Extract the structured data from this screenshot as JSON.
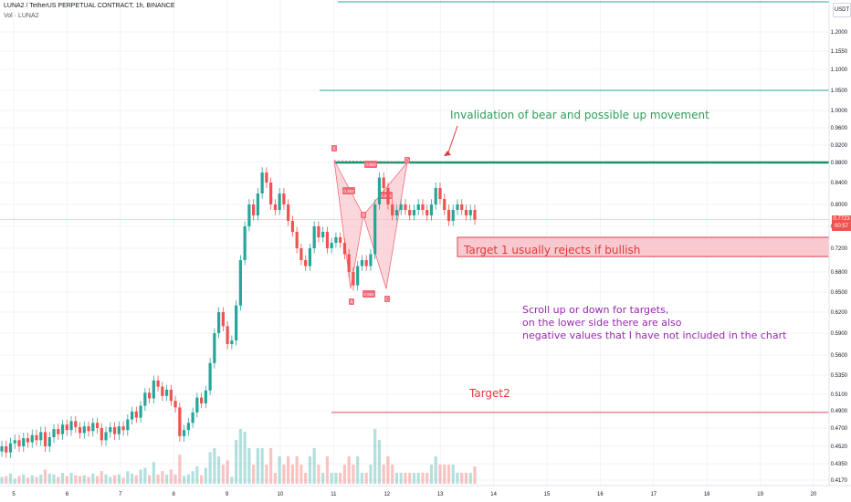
{
  "header": {
    "symbol_line": "LUNA2 / TetherUS PERPETUAL CONTRACT, 1h, BINANCE",
    "volume_label": "Vol · LUNA2"
  },
  "scale": {
    "unit_button": "USDT"
  },
  "price_badge": {
    "value": "0.7723",
    "countdown": "00:57"
  },
  "annotations": {
    "invalidation": "Invalidation of bear and possible up movement",
    "target1": "Target 1 usually rejects if bullish",
    "scroll_line1": "Scroll up or down for targets,",
    "scroll_line2": "on the lower side there are also",
    "scroll_line3": "negative values that I have not included in the chart",
    "target2": "Target2"
  },
  "colors": {
    "up": "#26a69a",
    "down": "#ef5350",
    "pattern": "#f06a7a",
    "green_note": "#2e9e5a",
    "red_note": "#e03a3a",
    "purple_note": "#9c27b0",
    "target_line": "#26a69a"
  },
  "chart_data": {
    "type": "candlestick",
    "exchange": "BINANCE",
    "timeframe": "1h",
    "y_ticks": [
      1.2,
      1.155,
      1.1,
      1.05,
      1.0,
      0.96,
      0.92,
      0.88,
      0.84,
      0.8,
      0.76,
      0.72,
      0.68,
      0.65,
      0.62,
      0.59,
      0.56,
      0.535,
      0.51,
      0.49,
      0.47,
      0.452,
      0.435,
      0.417
    ],
    "y_tick_labels": [
      "1.2000",
      "1.1550",
      "1.1000",
      "1.0500",
      "1.0000",
      "0.9600",
      "0.9200",
      "0.8800",
      "0.8400",
      "0.8000",
      "0.7600",
      "0.7200",
      "0.6800",
      "0.6500",
      "0.6200",
      "0.5900",
      "0.5600",
      "0.5350",
      "0.5100",
      "0.4900",
      "0.4700",
      "0.4520",
      "0.4350",
      "0.4170"
    ],
    "x_ticks": [
      5,
      6,
      7,
      8,
      9,
      10,
      11,
      12,
      13,
      14,
      15,
      16,
      17,
      18,
      19,
      20
    ],
    "x_tick_labels": [
      "5",
      "6",
      "7",
      "8",
      "9",
      "10",
      "11",
      "12",
      "13",
      "14",
      "15",
      "16",
      "17",
      "18",
      "19",
      "20"
    ],
    "last_price": 0.7723,
    "candles": [
      [
        0.447,
        0.452
      ],
      [
        0.452,
        0.446
      ],
      [
        0.446,
        0.455
      ],
      [
        0.455,
        0.458
      ],
      [
        0.458,
        0.452
      ],
      [
        0.452,
        0.46
      ],
      [
        0.46,
        0.456
      ],
      [
        0.456,
        0.463
      ],
      [
        0.463,
        0.458
      ],
      [
        0.458,
        0.466
      ],
      [
        0.466,
        0.452
      ],
      [
        0.452,
        0.461
      ],
      [
        0.461,
        0.469
      ],
      [
        0.469,
        0.464
      ],
      [
        0.464,
        0.474
      ],
      [
        0.474,
        0.468
      ],
      [
        0.468,
        0.478
      ],
      [
        0.478,
        0.471
      ],
      [
        0.471,
        0.465
      ],
      [
        0.465,
        0.472
      ],
      [
        0.472,
        0.467
      ],
      [
        0.467,
        0.476
      ],
      [
        0.476,
        0.47
      ],
      [
        0.47,
        0.458
      ],
      [
        0.458,
        0.466
      ],
      [
        0.466,
        0.471
      ],
      [
        0.471,
        0.464
      ],
      [
        0.464,
        0.472
      ],
      [
        0.472,
        0.468
      ],
      [
        0.468,
        0.48
      ],
      [
        0.48,
        0.489
      ],
      [
        0.489,
        0.482
      ],
      [
        0.482,
        0.496
      ],
      [
        0.496,
        0.512
      ],
      [
        0.512,
        0.505
      ],
      [
        0.505,
        0.528
      ],
      [
        0.528,
        0.52
      ],
      [
        0.52,
        0.508
      ],
      [
        0.508,
        0.516
      ],
      [
        0.516,
        0.502
      ],
      [
        0.502,
        0.494
      ],
      [
        0.494,
        0.462
      ],
      [
        0.462,
        0.468
      ],
      [
        0.468,
        0.476
      ],
      [
        0.476,
        0.488
      ],
      [
        0.488,
        0.506
      ],
      [
        0.506,
        0.499
      ],
      [
        0.499,
        0.515
      ],
      [
        0.515,
        0.55
      ],
      [
        0.55,
        0.59
      ],
      [
        0.59,
        0.62
      ],
      [
        0.62,
        0.6
      ],
      [
        0.6,
        0.575
      ],
      [
        0.575,
        0.58
      ],
      [
        0.58,
        0.63
      ],
      [
        0.63,
        0.7
      ],
      [
        0.7,
        0.76
      ],
      [
        0.76,
        0.8
      ],
      [
        0.8,
        0.78
      ],
      [
        0.78,
        0.82
      ],
      [
        0.82,
        0.86
      ],
      [
        0.86,
        0.84
      ],
      [
        0.84,
        0.8
      ],
      [
        0.8,
        0.79
      ],
      [
        0.79,
        0.82
      ],
      [
        0.82,
        0.8
      ],
      [
        0.8,
        0.77
      ],
      [
        0.77,
        0.75
      ],
      [
        0.75,
        0.72
      ],
      [
        0.72,
        0.7
      ],
      [
        0.7,
        0.69
      ],
      [
        0.69,
        0.72
      ],
      [
        0.72,
        0.76
      ],
      [
        0.76,
        0.74
      ],
      [
        0.74,
        0.75
      ],
      [
        0.75,
        0.72
      ],
      [
        0.72,
        0.73
      ],
      [
        0.73,
        0.74
      ],
      [
        0.74,
        0.73
      ],
      [
        0.73,
        0.71
      ],
      [
        0.71,
        0.68
      ],
      [
        0.68,
        0.66
      ],
      [
        0.66,
        0.69
      ],
      [
        0.69,
        0.7
      ],
      [
        0.7,
        0.69
      ],
      [
        0.69,
        0.71
      ],
      [
        0.71,
        0.8
      ],
      [
        0.8,
        0.85
      ],
      [
        0.85,
        0.83
      ],
      [
        0.83,
        0.8
      ],
      [
        0.8,
        0.78
      ],
      [
        0.78,
        0.79
      ],
      [
        0.79,
        0.8
      ],
      [
        0.8,
        0.79
      ],
      [
        0.79,
        0.78
      ],
      [
        0.78,
        0.79
      ],
      [
        0.79,
        0.8
      ],
      [
        0.8,
        0.79
      ],
      [
        0.79,
        0.78
      ],
      [
        0.78,
        0.8
      ],
      [
        0.8,
        0.83
      ],
      [
        0.83,
        0.81
      ],
      [
        0.81,
        0.79
      ],
      [
        0.79,
        0.77
      ],
      [
        0.77,
        0.79
      ],
      [
        0.79,
        0.8
      ],
      [
        0.8,
        0.79
      ],
      [
        0.79,
        0.78
      ],
      [
        0.78,
        0.79
      ],
      [
        0.79,
        0.7723
      ]
    ],
    "target_levels": [
      1.25,
      1.05
    ],
    "invalidation_level": 0.88,
    "target1_zone": [
      0.74,
      0.706
    ],
    "target2_level": 0.488,
    "pattern_points": {
      "X": 0.885,
      "A": 0.655,
      "B": 0.78,
      "C": 0.655,
      "D": 0.88
    },
    "pattern_labels": [
      "X",
      "A",
      "B",
      "C",
      "D"
    ],
    "ratio_labels": [
      "0.903",
      "0.462",
      "1.573",
      "0.963"
    ]
  }
}
